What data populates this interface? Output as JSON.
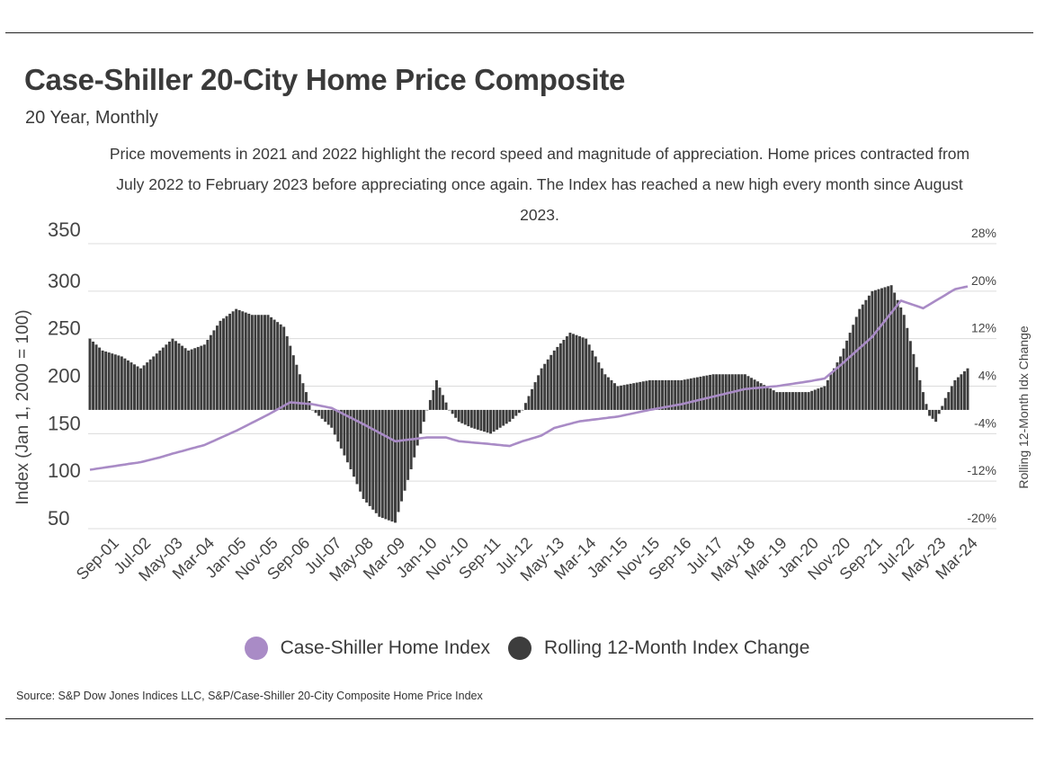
{
  "title": "Case-Shiller 20-City Home Price Composite",
  "subtitle": "20 Year, Monthly",
  "annotation": "Price movements in 2021 and 2022 highlight the record speed and magnitude of appreciation. Home prices contracted from July 2022 to February 2023 before appreciating once again. The Index has reached a new high every month since August 2023.",
  "legend": [
    {
      "label": "Case-Shiller Home Index",
      "color": "#a98bc6"
    },
    {
      "label": "Rolling 12-Month Index Change",
      "color": "#3d3d3d"
    }
  ],
  "source": "Source:  S&P Dow Jones Indices LLC, S&P/Case-Shiller 20-City Composite Home Price Index",
  "chart_data": {
    "type": "bar+line",
    "ylabel_left": "Index (Jan 1, 2000 = 100)",
    "ylabel_right": "Rolling 12-Month Idx Change",
    "ylim_left": [
      50,
      350
    ],
    "yticks_left": [
      "350",
      "300",
      "250",
      "200",
      "150",
      "100",
      "50"
    ],
    "ylim_right": [
      -20,
      28
    ],
    "yticks_right": [
      "28%",
      "20%",
      "12%",
      "4%",
      "-4%",
      "-12%",
      "-20%"
    ],
    "grid": true,
    "legend_position": "bottom",
    "x_tick_labels": [
      "Sep-01",
      "Jul-02",
      "May-03",
      "Mar-04",
      "Jan-05",
      "Nov-05",
      "Sep-06",
      "Jul-07",
      "May-08",
      "Mar-09",
      "Jan-10",
      "Nov-10",
      "Sep-11",
      "Jul-12",
      "May-13",
      "Mar-14",
      "Jan-15",
      "Nov-15",
      "Sep-16",
      "Jul-17",
      "May-18",
      "Mar-19",
      "Jan-20",
      "Nov-20",
      "Sep-21",
      "Jul-22",
      "May-23",
      "Mar-24"
    ],
    "series": [
      {
        "name": "Case-Shiller Home Index",
        "type": "line",
        "axis": "left",
        "color": "#a98bc6",
        "points": [
          [
            "Mar-01",
            112
          ],
          [
            "Sep-01",
            115
          ],
          [
            "Jan-02",
            117
          ],
          [
            "Jul-02",
            120
          ],
          [
            "Jan-03",
            125
          ],
          [
            "May-03",
            129
          ],
          [
            "Mar-04",
            138
          ],
          [
            "Jan-05",
            153
          ],
          [
            "Nov-05",
            170
          ],
          [
            "Jun-06",
            183
          ],
          [
            "Jan-07",
            181
          ],
          [
            "Jul-07",
            177
          ],
          [
            "May-08",
            160
          ],
          [
            "Mar-09",
            142
          ],
          [
            "Jan-10",
            146
          ],
          [
            "Jul-10",
            146
          ],
          [
            "Nov-10",
            142
          ],
          [
            "Sep-11",
            139
          ],
          [
            "Mar-12",
            137
          ],
          [
            "Jul-12",
            142
          ],
          [
            "Jan-13",
            148
          ],
          [
            "May-13",
            156
          ],
          [
            "Jan-14",
            163
          ],
          [
            "Jan-15",
            168
          ],
          [
            "Nov-15",
            175
          ],
          [
            "Sep-16",
            181
          ],
          [
            "Jul-17",
            189
          ],
          [
            "May-18",
            197
          ],
          [
            "Mar-19",
            200
          ],
          [
            "Jan-20",
            205
          ],
          [
            "Jun-20",
            208
          ],
          [
            "Nov-20",
            222
          ],
          [
            "Sep-21",
            252
          ],
          [
            "Jun-22",
            290
          ],
          [
            "Jan-23",
            282
          ],
          [
            "May-23",
            290
          ],
          [
            "Nov-23",
            302
          ],
          [
            "Mar-24",
            305
          ]
        ]
      },
      {
        "name": "Rolling 12-Month Index Change",
        "type": "bar",
        "axis": "right",
        "color": "#3d3d3d",
        "points": [
          [
            "Mar-01",
            12
          ],
          [
            "Jul-01",
            10
          ],
          [
            "Jan-02",
            9
          ],
          [
            "Jul-02",
            7
          ],
          [
            "Jan-03",
            10
          ],
          [
            "May-03",
            12
          ],
          [
            "Oct-03",
            10
          ],
          [
            "Mar-04",
            11
          ],
          [
            "Aug-04",
            15
          ],
          [
            "Jan-05",
            17
          ],
          [
            "Jun-05",
            16
          ],
          [
            "Nov-05",
            16
          ],
          [
            "Apr-06",
            14
          ],
          [
            "Sep-06",
            6
          ],
          [
            "Jan-07",
            0
          ],
          [
            "Jul-07",
            -3
          ],
          [
            "Jan-08",
            -10
          ],
          [
            "May-08",
            -15
          ],
          [
            "Oct-08",
            -18
          ],
          [
            "Mar-09",
            -19
          ],
          [
            "Aug-09",
            -10
          ],
          [
            "Jan-10",
            0
          ],
          [
            "Apr-10",
            5
          ],
          [
            "Aug-10",
            0
          ],
          [
            "Nov-10",
            -2
          ],
          [
            "Mar-11",
            -3
          ],
          [
            "Sep-11",
            -4
          ],
          [
            "Mar-12",
            -2
          ],
          [
            "Jul-12",
            0
          ],
          [
            "Jan-13",
            7
          ],
          [
            "May-13",
            10
          ],
          [
            "Oct-13",
            13
          ],
          [
            "Mar-14",
            12
          ],
          [
            "Sep-14",
            6
          ],
          [
            "Jan-15",
            4
          ],
          [
            "Nov-15",
            5
          ],
          [
            "Sep-16",
            5
          ],
          [
            "Jul-17",
            6
          ],
          [
            "May-18",
            6
          ],
          [
            "Mar-19",
            3
          ],
          [
            "Jan-20",
            3
          ],
          [
            "Jun-20",
            4
          ],
          [
            "Nov-20",
            9
          ],
          [
            "May-21",
            17
          ],
          [
            "Sep-21",
            20
          ],
          [
            "Mar-22",
            21
          ],
          [
            "Jul-22",
            16
          ],
          [
            "Dec-22",
            5
          ],
          [
            "Mar-23",
            -1
          ],
          [
            "May-23",
            -2
          ],
          [
            "Aug-23",
            2
          ],
          [
            "Nov-23",
            5
          ],
          [
            "Mar-24",
            7
          ]
        ]
      }
    ]
  }
}
